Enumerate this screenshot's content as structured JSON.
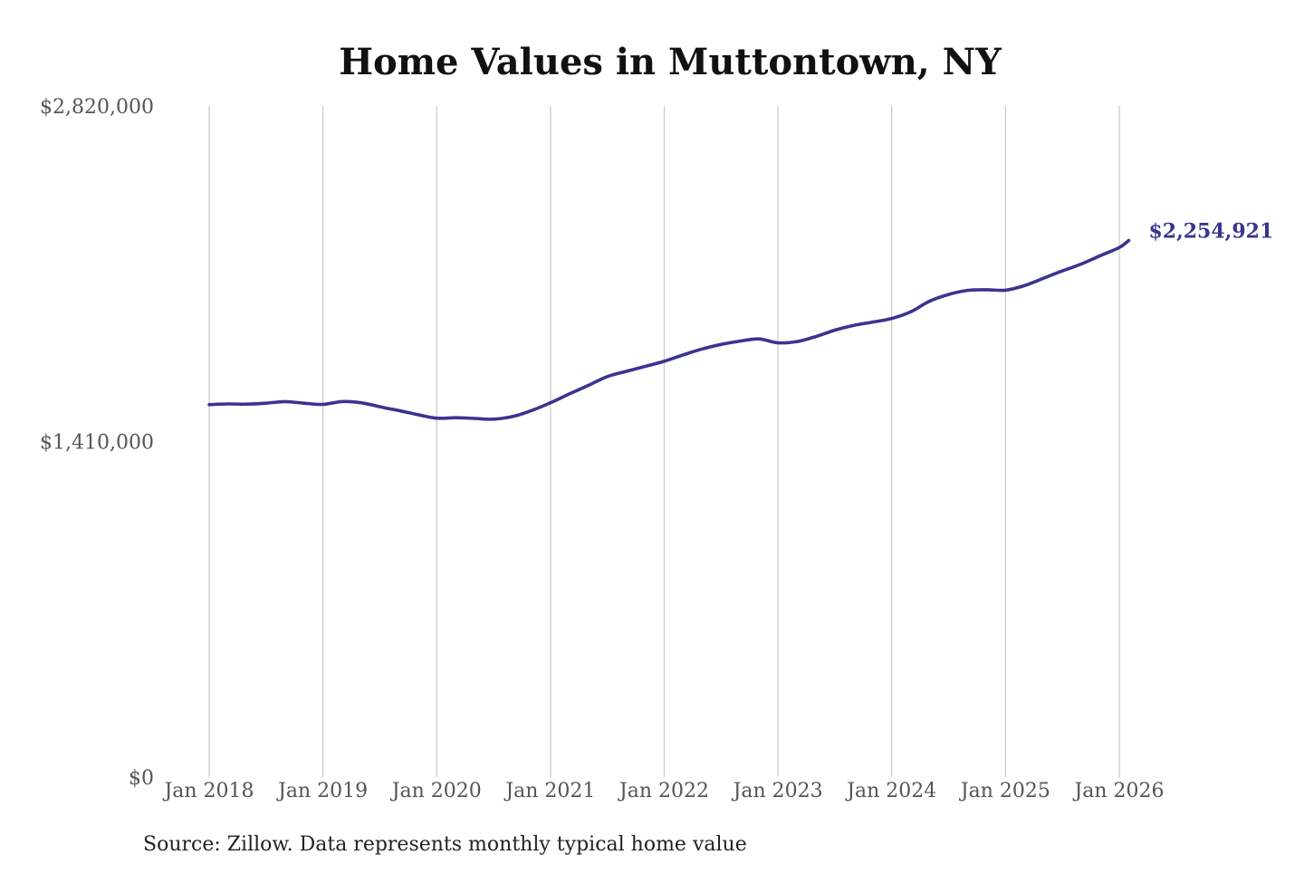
{
  "chart_data": {
    "type": "line",
    "title": "Home Values in Muttontown, NY",
    "source": "Source: Zillow. Data represents monthly typical home value",
    "y_ticks": [
      {
        "value": 2820000,
        "label": "$2,820,000"
      },
      {
        "value": 1410000,
        "label": "$1,410,000"
      },
      {
        "value": 0,
        "label": "$0"
      }
    ],
    "ylim": [
      0,
      2820000
    ],
    "x_ticks": [
      {
        "value": "2018-01",
        "label": "Jan 2018"
      },
      {
        "value": "2019-01",
        "label": "Jan 2019"
      },
      {
        "value": "2020-01",
        "label": "Jan 2020"
      },
      {
        "value": "2021-01",
        "label": "Jan 2021"
      },
      {
        "value": "2022-01",
        "label": "Jan 2022"
      },
      {
        "value": "2023-01",
        "label": "Jan 2023"
      },
      {
        "value": "2024-01",
        "label": "Jan 2024"
      },
      {
        "value": "2025-01",
        "label": "Jan 2025"
      },
      {
        "value": "2026-01",
        "label": "Jan 2026"
      }
    ],
    "xlim": [
      "2018-01",
      "2026-01"
    ],
    "grid": "vertical",
    "line_color": "#3b3391",
    "end_label": "$2,254,921",
    "series": [
      {
        "points": [
          [
            "2018-01",
            1565000
          ],
          [
            "2018-03",
            1568000
          ],
          [
            "2018-05",
            1567000
          ],
          [
            "2018-07",
            1571000
          ],
          [
            "2018-09",
            1578000
          ],
          [
            "2018-11",
            1571000
          ],
          [
            "2019-01",
            1566000
          ],
          [
            "2019-03",
            1578000
          ],
          [
            "2019-05",
            1573000
          ],
          [
            "2019-07",
            1556000
          ],
          [
            "2019-09",
            1540000
          ],
          [
            "2019-11",
            1523000
          ],
          [
            "2020-01",
            1508000
          ],
          [
            "2020-03",
            1510000
          ],
          [
            "2020-05",
            1507000
          ],
          [
            "2020-07",
            1504000
          ],
          [
            "2020-09",
            1515000
          ],
          [
            "2020-11",
            1540000
          ],
          [
            "2021-01",
            1573000
          ],
          [
            "2021-03",
            1610000
          ],
          [
            "2021-05",
            1646000
          ],
          [
            "2021-07",
            1683000
          ],
          [
            "2021-09",
            1705000
          ],
          [
            "2021-11",
            1726000
          ],
          [
            "2022-01",
            1747000
          ],
          [
            "2022-03",
            1774000
          ],
          [
            "2022-05",
            1799000
          ],
          [
            "2022-07",
            1818000
          ],
          [
            "2022-09",
            1832000
          ],
          [
            "2022-11",
            1841000
          ],
          [
            "2023-01",
            1825000
          ],
          [
            "2023-03",
            1830000
          ],
          [
            "2023-05",
            1851000
          ],
          [
            "2023-07",
            1878000
          ],
          [
            "2023-09",
            1898000
          ],
          [
            "2023-11",
            1912000
          ],
          [
            "2024-01",
            1927000
          ],
          [
            "2024-03",
            1955000
          ],
          [
            "2024-05",
            2000000
          ],
          [
            "2024-07",
            2028000
          ],
          [
            "2024-09",
            2045000
          ],
          [
            "2024-11",
            2048000
          ],
          [
            "2025-01",
            2046000
          ],
          [
            "2025-03",
            2065000
          ],
          [
            "2025-05",
            2096000
          ],
          [
            "2025-07",
            2127000
          ],
          [
            "2025-09",
            2156000
          ],
          [
            "2025-11",
            2191000
          ],
          [
            "2026-01",
            2225000
          ],
          [
            "2026-02",
            2254921
          ]
        ]
      }
    ]
  }
}
